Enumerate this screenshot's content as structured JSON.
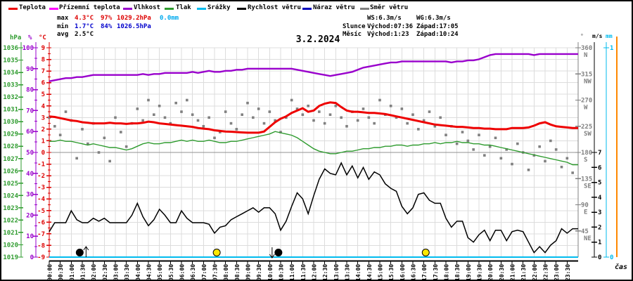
{
  "legend": {
    "items": [
      {
        "label": "Teplota",
        "color": "#ee0000"
      },
      {
        "label": "Přízemní teplota",
        "color": "#ff00ff"
      },
      {
        "label": "Vlhkost",
        "color": "#9900cc"
      },
      {
        "label": "Tlak",
        "color": "#2e9b2e"
      },
      {
        "label": "Srážky",
        "color": "#00bbee"
      },
      {
        "label": "Rychlost větru",
        "color": "#000000"
      },
      {
        "label": "Náraz větru",
        "color": "#0000bb"
      },
      {
        "label": "Směr větru",
        "color": "#808080"
      }
    ]
  },
  "stats": {
    "rows": [
      {
        "label": "max",
        "temp": "4.3°C",
        "hum": "97%",
        "pres": "1029.2hPa",
        "rain": "0.0mm"
      },
      {
        "label": "min",
        "temp": "1.7°C",
        "hum": "84%",
        "pres": "1026.5hPa"
      },
      {
        "label": "avg",
        "temp": "2.5°C"
      }
    ],
    "wind": {
      "ws": "WS:6.3m/s",
      "wg": "WG:6.3m/s"
    },
    "sun": {
      "label": "Slunce",
      "rise": "Východ:07:36",
      "set": "Západ:17:05"
    },
    "moon": {
      "label": "Měsíc",
      "rise": "Východ:1:23",
      "set": "Západ:10:24"
    }
  },
  "colors": {
    "max_text": "#dd0000",
    "min_text": "#0000cc",
    "avg_text": "#000000",
    "rain_text": "#00aaee",
    "grid": "#dcdcdc",
    "zero_line": "#909090",
    "orange_line": "#ff8800",
    "sun_fill": "#ffe800",
    "moon_fill": "#000000"
  },
  "axes": {
    "left": [
      {
        "id": "hpa",
        "label": "hPa",
        "color": "#2e9b2e",
        "min": 1019,
        "max": 1036,
        "label_step": 1
      },
      {
        "id": "pct",
        "label": "%",
        "color": "#9900cc",
        "min": 0,
        "max": 100,
        "label_step": 10,
        "minor_step": 5
      },
      {
        "id": "degc",
        "label": "°C",
        "color": "#dd0000",
        "min": -9,
        "max": 9,
        "label_step": 1,
        "minor_step": 0.5
      }
    ],
    "right": [
      {
        "id": "deg",
        "label": "°",
        "color": "#808080",
        "ticks": [
          {
            "v": 45,
            "t": "NE"
          },
          {
            "v": 90,
            "t": "E"
          },
          {
            "v": 135,
            "t": "SE"
          },
          {
            "v": 180,
            "t": "S"
          },
          {
            "v": 225,
            "t": "SW"
          },
          {
            "v": 270,
            "t": "W"
          },
          {
            "v": 315,
            "t": "NW"
          },
          {
            "v": 360,
            "t": "N"
          }
        ]
      },
      {
        "id": "ms",
        "label": "m/s",
        "color": "#000000",
        "min": 0,
        "max": 7,
        "label_step": 1
      },
      {
        "id": "mm",
        "label": "mm",
        "color": "#00bbee",
        "ticks": [
          {
            "v": 0,
            "t": "0"
          },
          {
            "v": 1,
            "t": "1"
          }
        ]
      }
    ],
    "x_label": "čas"
  },
  "chart_data": {
    "type": "line",
    "title": "3.2.2024",
    "sample_step_minutes": 15,
    "x_axis": {
      "label": "čas",
      "unit": "time",
      "tick_step_minutes": 30,
      "tick_labels": [
        "00:00",
        "00:30",
        "01:00",
        "01:30",
        "02:00",
        "02:30",
        "03:00",
        "03:30",
        "04:00",
        "04:30",
        "05:00",
        "05:30",
        "06:00",
        "06:30",
        "07:00",
        "07:30",
        "08:00",
        "08:30",
        "09:00",
        "09:30",
        "10:00",
        "10:30",
        "11:00",
        "11:30",
        "12:00",
        "12:30",
        "13:00",
        "13:30",
        "14:00",
        "14:30",
        "15:00",
        "15:30",
        "16:00",
        "16:30",
        "17:00",
        "17:30",
        "18:00",
        "18:30",
        "19:00",
        "19:30",
        "20:00",
        "20:30",
        "21:00",
        "21:30",
        "22:00",
        "22:30",
        "23:00",
        "23:30"
      ]
    },
    "series": [
      {
        "name": "Směr větru",
        "unit": "°",
        "axis": "deg",
        "color": "#808080",
        "type": "scatter",
        "values": [
          240,
          225,
          210,
          250,
          235,
          170,
          220,
          195,
          230,
          180,
          205,
          165,
          240,
          215,
          190,
          230,
          255,
          235,
          270,
          245,
          260,
          240,
          230,
          265,
          250,
          270,
          245,
          235,
          225,
          240,
          205,
          215,
          250,
          230,
          220,
          245,
          265,
          240,
          255,
          230,
          250,
          235,
          215,
          240,
          270,
          255,
          245,
          260,
          235,
          250,
          230,
          245,
          260,
          240,
          225,
          250,
          235,
          255,
          240,
          230,
          270,
          245,
          260,
          240,
          255,
          230,
          245,
          220,
          235,
          250,
          225,
          240,
          210,
          225,
          195,
          215,
          200,
          185,
          210,
          175,
          190,
          205,
          170,
          185,
          160,
          195,
          180,
          150,
          175,
          190,
          165,
          200,
          185,
          155,
          170,
          145
        ]
      },
      {
        "name": "Vlhkost",
        "unit": "%",
        "axis": "pct",
        "color": "#9900cc",
        "type": "line",
        "width": 2.4,
        "values": [
          84,
          84.5,
          85,
          85.5,
          85.5,
          86,
          86,
          86.5,
          87,
          87,
          87,
          87,
          87,
          87,
          87,
          87,
          87,
          87.5,
          87,
          87.5,
          87.5,
          88,
          88,
          88,
          88,
          88,
          88.5,
          88,
          88.5,
          89,
          88.5,
          88.5,
          89,
          89,
          89.5,
          89.5,
          90,
          90,
          90,
          90,
          90,
          90,
          90,
          90,
          90,
          89.5,
          89,
          88.5,
          88,
          87.5,
          87,
          86.5,
          87,
          87.5,
          88,
          88.5,
          89.5,
          90.5,
          91,
          91.5,
          92,
          92.5,
          93,
          93,
          93.5,
          93.5,
          93.5,
          93.5,
          93.5,
          93.5,
          93.5,
          93.5,
          93.5,
          93,
          93.5,
          93.5,
          94,
          94,
          94.5,
          95.5,
          96.5,
          97,
          97,
          97,
          97,
          97,
          97,
          97,
          96.5,
          97,
          97,
          97,
          97,
          97,
          97,
          97
        ]
      },
      {
        "name": "Tlak",
        "unit": "hPa",
        "axis": "hpa",
        "color": "#2e9b2e",
        "type": "line",
        "width": 1.4,
        "values": [
          1028.4,
          1028.4,
          1028.5,
          1028.4,
          1028.4,
          1028.3,
          1028.2,
          1028.1,
          1028.2,
          1028.1,
          1028.0,
          1027.9,
          1027.9,
          1027.8,
          1027.7,
          1027.8,
          1028.0,
          1028.2,
          1028.3,
          1028.2,
          1028.2,
          1028.3,
          1028.3,
          1028.4,
          1028.5,
          1028.4,
          1028.5,
          1028.4,
          1028.4,
          1028.5,
          1028.4,
          1028.3,
          1028.3,
          1028.4,
          1028.4,
          1028.5,
          1028.6,
          1028.7,
          1028.8,
          1028.9,
          1029.0,
          1029.2,
          1029.1,
          1029.0,
          1028.9,
          1028.7,
          1028.4,
          1028.1,
          1027.8,
          1027.6,
          1027.5,
          1027.4,
          1027.4,
          1027.5,
          1027.6,
          1027.6,
          1027.7,
          1027.8,
          1027.8,
          1027.9,
          1027.9,
          1028.0,
          1028.0,
          1028.1,
          1028.1,
          1028.0,
          1028.1,
          1028.1,
          1028.2,
          1028.2,
          1028.3,
          1028.2,
          1028.3,
          1028.3,
          1028.4,
          1028.3,
          1028.3,
          1028.2,
          1028.2,
          1028.1,
          1028.1,
          1028.0,
          1027.9,
          1027.8,
          1027.7,
          1027.6,
          1027.5,
          1027.4,
          1027.3,
          1027.2,
          1027.1,
          1027.0,
          1026.9,
          1026.8,
          1026.7,
          1026.5
        ]
      },
      {
        "name": "Rychlost větru",
        "unit": "m/s",
        "axis": "ms",
        "color": "#000000",
        "type": "line",
        "width": 1.5,
        "values": [
          1.7,
          2.3,
          2.3,
          2.3,
          3.1,
          2.5,
          2.3,
          2.3,
          2.6,
          2.4,
          2.6,
          2.3,
          2.3,
          2.3,
          2.3,
          2.8,
          3.6,
          2.7,
          2.1,
          2.5,
          3.2,
          2.8,
          2.3,
          2.3,
          3.1,
          2.6,
          2.3,
          2.3,
          2.3,
          2.2,
          1.6,
          2.0,
          2.1,
          2.5,
          2.7,
          2.9,
          3.1,
          3.3,
          3.0,
          3.3,
          3.3,
          2.9,
          1.8,
          2.4,
          3.4,
          4.3,
          3.9,
          2.9,
          4.1,
          5.2,
          5.9,
          5.6,
          5.5,
          6.3,
          5.5,
          6.1,
          5.3,
          6.0,
          5.2,
          5.7,
          5.5,
          4.9,
          4.6,
          4.4,
          3.4,
          2.9,
          3.3,
          4.2,
          4.3,
          3.8,
          3.6,
          3.6,
          2.6,
          2.0,
          2.4,
          2.4,
          1.3,
          1.0,
          1.5,
          1.8,
          1.1,
          1.8,
          1.8,
          1.1,
          1.7,
          1.8,
          1.7,
          1.0,
          0.3,
          0.7,
          0.3,
          0.8,
          1.1,
          1.9,
          1.6,
          1.9
        ]
      },
      {
        "name": "Teplota",
        "unit": "°C",
        "axis": "degc",
        "color": "#ee0000",
        "type": "line",
        "width": 3,
        "values": [
          3.1,
          3.05,
          2.95,
          2.85,
          2.75,
          2.7,
          2.6,
          2.55,
          2.5,
          2.5,
          2.5,
          2.55,
          2.5,
          2.5,
          2.45,
          2.5,
          2.5,
          2.55,
          2.65,
          2.6,
          2.5,
          2.45,
          2.4,
          2.35,
          2.3,
          2.25,
          2.2,
          2.1,
          2.05,
          2.0,
          1.9,
          1.85,
          1.8,
          1.78,
          1.75,
          1.72,
          1.7,
          1.7,
          1.7,
          1.8,
          2.2,
          2.6,
          2.9,
          3.1,
          3.4,
          3.6,
          3.8,
          3.5,
          3.6,
          4.0,
          4.2,
          4.3,
          4.25,
          3.9,
          3.6,
          3.5,
          3.5,
          3.45,
          3.4,
          3.4,
          3.35,
          3.3,
          3.2,
          3.1,
          3.0,
          2.9,
          2.8,
          2.7,
          2.6,
          2.5,
          2.4,
          2.35,
          2.3,
          2.25,
          2.2,
          2.2,
          2.15,
          2.1,
          2.1,
          2.05,
          2.05,
          2.0,
          2.0,
          2.0,
          2.1,
          2.1,
          2.1,
          2.15,
          2.3,
          2.5,
          2.6,
          2.4,
          2.25,
          2.2,
          2.15,
          2.1
        ]
      },
      {
        "name": "Srážky",
        "unit": "mm",
        "axis": "mm",
        "color": "#00bbee",
        "type": "line",
        "width": 2,
        "constant": 0
      }
    ],
    "events": [
      {
        "name": "Měsíc východ",
        "time": "01:23",
        "symbol": "moon",
        "arrow": "up"
      },
      {
        "name": "Slunce východ",
        "time": "07:36",
        "symbol": "sun",
        "arrow": null
      },
      {
        "name": "Měsíc západ",
        "time": "10:24",
        "symbol": "moon",
        "arrow": "down"
      },
      {
        "name": "Slunce západ",
        "time": "17:05",
        "symbol": "sun",
        "arrow": null
      }
    ]
  }
}
